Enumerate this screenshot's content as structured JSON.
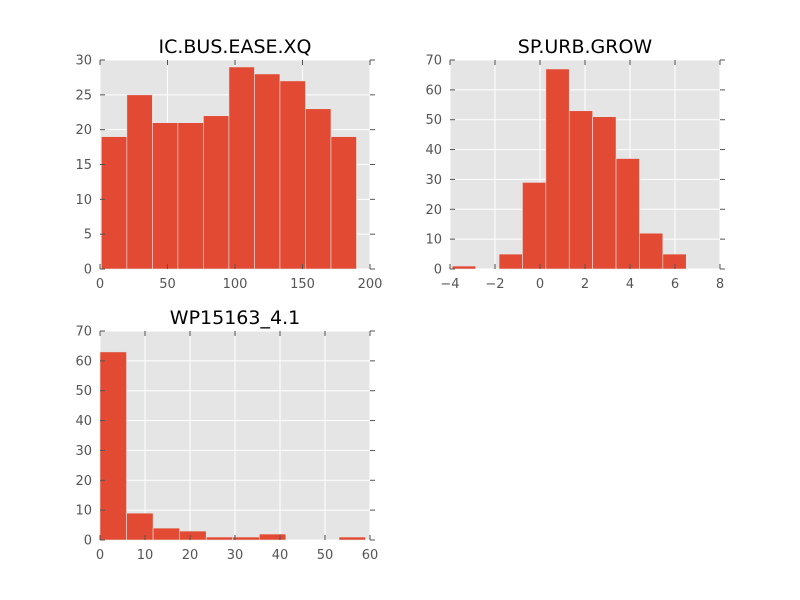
{
  "chart_data": [
    {
      "type": "bar",
      "title": "IC.BUS.EASE.XQ",
      "xlabel": "",
      "ylabel": "",
      "xlim": [
        0,
        200
      ],
      "ylim": [
        0,
        30
      ],
      "xticks": [
        "0",
        "50",
        "100",
        "150",
        "200"
      ],
      "yticks": [
        "0",
        "5",
        "10",
        "15",
        "20",
        "25",
        "30"
      ],
      "grid": true,
      "bin_edges": [
        1,
        19.9,
        38.8,
        57.7,
        76.6,
        95.5,
        114.4,
        133.3,
        152.2,
        171.1,
        190
      ],
      "values": [
        19,
        25,
        21,
        21,
        22,
        29,
        28,
        27,
        23,
        19
      ],
      "bar_color": "#e24a33"
    },
    {
      "type": "bar",
      "title": "SP.URB.GROW",
      "xlabel": "",
      "ylabel": "",
      "xlim": [
        -4,
        8
      ],
      "ylim": [
        0,
        70
      ],
      "xticks": [
        "−4",
        "−2",
        "0",
        "2",
        "4",
        "6",
        "8"
      ],
      "yticks": [
        "0",
        "10",
        "20",
        "30",
        "40",
        "50",
        "60",
        "70"
      ],
      "grid": true,
      "bin_edges": [
        -3.9,
        -2.86,
        -1.82,
        -0.78,
        0.26,
        1.3,
        2.34,
        3.38,
        4.42,
        5.46,
        6.5
      ],
      "values": [
        1,
        0,
        5,
        29,
        67,
        53,
        51,
        37,
        12,
        5
      ],
      "bar_color": "#e24a33"
    },
    {
      "type": "bar",
      "title": "WP15163_4.1",
      "xlabel": "",
      "ylabel": "",
      "xlim": [
        0,
        60
      ],
      "ylim": [
        0,
        70
      ],
      "xticks": [
        "0",
        "10",
        "20",
        "30",
        "40",
        "50",
        "60"
      ],
      "yticks": [
        "0",
        "10",
        "20",
        "30",
        "40",
        "50",
        "60",
        "70"
      ],
      "grid": true,
      "bin_edges": [
        0,
        5.9,
        11.8,
        17.7,
        23.6,
        29.5,
        35.4,
        41.3,
        47.2,
        53.1,
        59
      ],
      "values": [
        63,
        9,
        4,
        3,
        1,
        1,
        2,
        0,
        0,
        1
      ],
      "bar_color": "#e24a33"
    }
  ]
}
